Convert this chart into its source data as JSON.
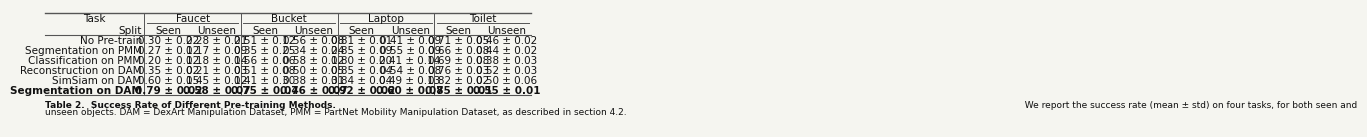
{
  "header1": [
    "Task",
    "Faucet",
    "",
    "Bucket",
    "",
    "Laptop",
    "",
    "Toilet",
    ""
  ],
  "header2": [
    "Split",
    "Seen",
    "Unseen",
    "Seen",
    "Unseen",
    "Seen",
    "Unseen",
    "Seen",
    "Unseen"
  ],
  "rows": [
    [
      "No Pre-train",
      "0.30 ± 0.22",
      "0.28 ± 0.21",
      "0.51 ± 0.12",
      "0.56 ± 0.08",
      "0.81 ± 0.01",
      "0.41 ± 0.09",
      "0.71 ± 0.05",
      "0.46 ± 0.02"
    ],
    [
      "Segmentation on PMM",
      "0.27 ± 0.12",
      "0.17 ± 0.09",
      "0.35 ± 0.25",
      "0.34 ± 0.24",
      "0.85 ± 0.09",
      "0.55 ± 0.09",
      "0.66 ± 0.08",
      "0.44 ± 0.02"
    ],
    [
      "Classification on PMM",
      "0.20 ± 0.12",
      "0.18 ± 0.14",
      "0.56 ± 0.06",
      "0.58 ± 0.12",
      "0.80 ± 0.20",
      "0.41 ± 0.14",
      "0.69 ± 0.08",
      "0.38 ± 0.03"
    ],
    [
      "Reconstruction on DAM",
      "0.35 ± 0.02",
      "0.21 ± 0.03",
      "0.51 ± 0.08",
      "0.50 ± 0.05",
      "0.85 ± 0.04",
      "0.54 ± 0.08",
      "0.76 ± 0.03",
      "0.52 ± 0.03"
    ],
    [
      "SimSiam on DAM",
      "0.60 ± 0.15",
      "0.45 ± 0.12",
      "0.41 ± 0.30",
      "0.38 ± 0.31",
      "0.84 ± 0.04",
      "0.49 ± 0.13",
      "0.82 ± 0.02",
      "0.50 ± 0.06"
    ],
    [
      "Segmentation on DAM",
      "0.79 ± 0.02",
      "0.58 ± 0.07",
      "0.75 ± 0.04",
      "0.76 ± 0.07",
      "0.92 ± 0.02",
      "0.60 ± 0.07",
      "0.85 ± 0.01",
      "0.55 ± 0.01"
    ]
  ],
  "bold_last_row": true,
  "caption": "Table 2.  Success Rate of Different Pre-training Methods.  We report the success rate (mean ± std) on four tasks, for both seen and\nunseen objects. DAM = DexArt Manipulation Dataset, PMM = PartNet Mobility Manipulation Dataset, as described in section 4.2.",
  "caption_bold_part": "Success Rate of Different Pre-training Methods.",
  "bg_color": "#f5f5f0",
  "header_bg": "#e8e8e8",
  "line_color": "#555555",
  "text_color": "#111111",
  "font_size": 7.5,
  "caption_font_size": 6.5
}
